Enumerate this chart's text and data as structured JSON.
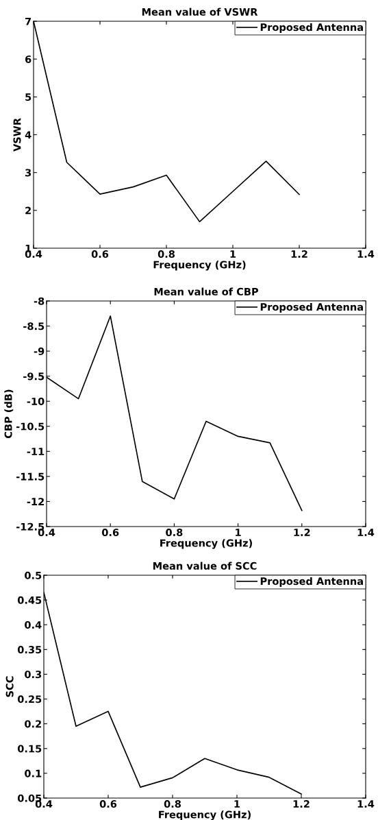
{
  "chart_data": [
    {
      "type": "line",
      "title": "Mean value of VSWR",
      "xlabel": "Frequency (GHz)",
      "ylabel": "VSWR",
      "x": [
        0.4,
        0.5,
        0.6,
        0.7,
        0.8,
        0.9,
        1.0,
        1.1,
        1.2
      ],
      "series": [
        {
          "name": "Proposed Antenna",
          "color": "#000000",
          "values": [
            7.0,
            3.27,
            2.43,
            2.62,
            2.93,
            1.7,
            2.5,
            3.3,
            2.42
          ]
        }
      ],
      "xlim": [
        0.4,
        1.4
      ],
      "xticks": [
        0.4,
        0.6,
        0.8,
        1,
        1.2,
        1.4
      ],
      "ylim": [
        1,
        7
      ],
      "yticks": [
        1,
        2,
        3,
        4,
        5,
        6,
        7
      ],
      "legend": "top right",
      "grid": false
    },
    {
      "type": "line",
      "title": "Mean value of CBP",
      "xlabel": "Frequency (GHz)",
      "ylabel": "CBP (dB)",
      "x": [
        0.4,
        0.5,
        0.6,
        0.7,
        0.8,
        0.9,
        1.0,
        1.1,
        1.2
      ],
      "series": [
        {
          "name": "Proposed Antenna",
          "color": "#000000",
          "values": [
            -9.52,
            -9.95,
            -8.3,
            -11.6,
            -11.95,
            -10.4,
            -10.7,
            -10.83,
            -12.18
          ]
        }
      ],
      "xlim": [
        0.4,
        1.4
      ],
      "xticks": [
        0.4,
        0.6,
        0.8,
        1,
        1.2,
        1.4
      ],
      "ylim": [
        -12.5,
        -8
      ],
      "yticks": [
        -12.5,
        -12,
        -11.5,
        -11,
        -10.5,
        -10,
        -9.5,
        -9,
        -8.5,
        -8
      ],
      "legend": "top right",
      "grid": false
    },
    {
      "type": "line",
      "title": "Mean value of SCC",
      "xlabel": "Frequency (GHz)",
      "ylabel": "SCC",
      "x": [
        0.4,
        0.5,
        0.6,
        0.7,
        0.8,
        0.9,
        1.0,
        1.1,
        1.2
      ],
      "series": [
        {
          "name": "Proposed Antenna",
          "color": "#000000",
          "values": [
            0.465,
            0.195,
            0.225,
            0.072,
            0.091,
            0.13,
            0.107,
            0.092,
            0.058
          ]
        }
      ],
      "xlim": [
        0.4,
        1.4
      ],
      "xticks": [
        0.4,
        0.6,
        0.8,
        1,
        1.2,
        1.4
      ],
      "ylim": [
        0.05,
        0.5
      ],
      "yticks": [
        0.05,
        0.1,
        0.15,
        0.2,
        0.25,
        0.3,
        0.35,
        0.4,
        0.45,
        0.5
      ],
      "legend": "top right",
      "grid": false
    }
  ]
}
